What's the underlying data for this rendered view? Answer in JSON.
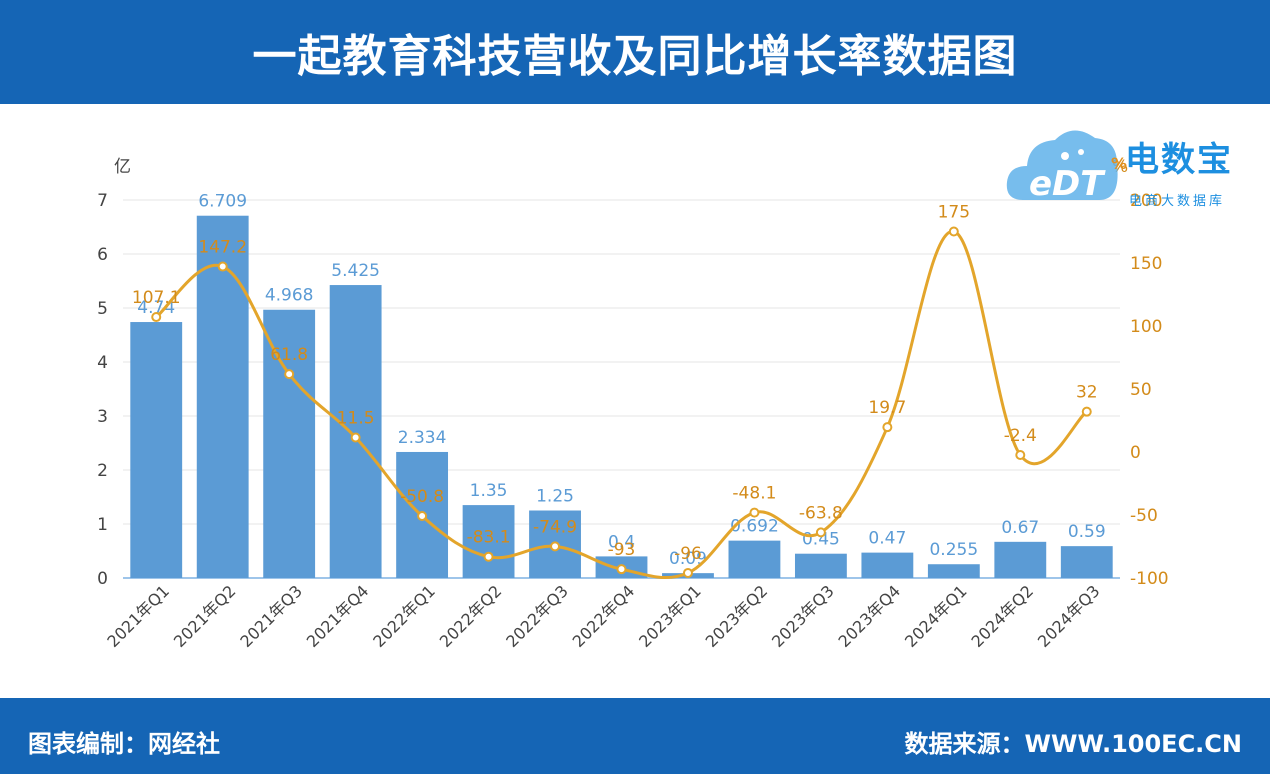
{
  "header": {
    "title": "一起教育科技营收及同比增长率数据图"
  },
  "footer": {
    "left": "图表编制：网经社",
    "right": "数据来源：WWW.100EC.CN"
  },
  "logo": {
    "brand": "电数宝",
    "sub": "电商大数据库",
    "mark": "eDT",
    "pct": "%"
  },
  "colors": {
    "header": "#1565b5",
    "bar": "#5b9bd5",
    "line": "#e3a52b",
    "bar_label": "#5b9bd5",
    "line_label": "#d38b1a"
  },
  "chart_data": {
    "type": "bar",
    "categories": [
      "2021年Q1",
      "2021年Q2",
      "2021年Q3",
      "2021年Q4",
      "2022年Q1",
      "2022年Q2",
      "2022年Q3",
      "2022年Q4",
      "2023年Q1",
      "2023年Q2",
      "2023年Q3",
      "2023年Q4",
      "2024年Q1",
      "2024年Q2",
      "2024年Q3"
    ],
    "left_axis": {
      "unit": "亿",
      "ticks": [
        "0",
        "1",
        "2",
        "3",
        "4",
        "5",
        "6",
        "7"
      ],
      "ylim": [
        0,
        7
      ]
    },
    "right_axis": {
      "unit": "%",
      "ticks": [
        "-100",
        "-50",
        "0",
        "50",
        "100",
        "150",
        "200"
      ],
      "ylim": [
        -100,
        200
      ]
    },
    "series": [
      {
        "type": "bar",
        "axis": "left",
        "values": [
          4.74,
          6.709,
          4.968,
          5.425,
          2.334,
          1.35,
          1.25,
          0.4,
          0.09,
          0.692,
          0.45,
          0.47,
          0.255,
          0.67,
          0.59
        ],
        "labels": [
          "4.74",
          "6.709",
          "4.968",
          "5.425",
          "2.334",
          "1.35",
          "1.25",
          "0.4",
          "0.09",
          "0.692",
          "0.45",
          "0.47",
          "0.255",
          "0.67",
          "0.59"
        ]
      },
      {
        "type": "line",
        "axis": "right",
        "values": [
          107.1,
          147.2,
          61.8,
          11.5,
          -50.8,
          -83.1,
          -74.9,
          -93,
          -96,
          -48.1,
          -63.8,
          19.7,
          175,
          -2.4,
          32
        ],
        "labels": [
          "107.1",
          "147.2",
          "61.8",
          "11.5",
          "-50.8",
          "-83.1",
          "-74.9",
          "-93",
          "-96",
          "-48.1",
          "-63.8",
          "19.7",
          "175",
          "-2.4",
          "32"
        ]
      }
    ]
  }
}
